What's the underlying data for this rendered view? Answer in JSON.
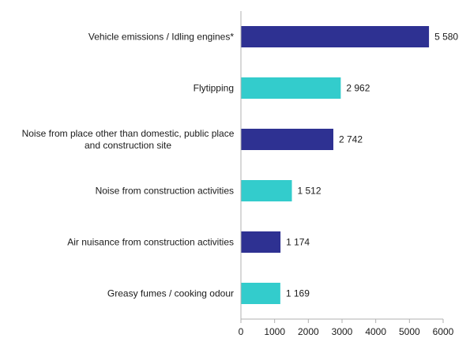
{
  "chart_data": {
    "type": "bar",
    "orientation": "horizontal",
    "categories": [
      [
        "Vehicle emissions / Idling engines*"
      ],
      [
        "Flytipping"
      ],
      [
        "Noise from place other than domestic, public place",
        "and construction site"
      ],
      [
        "Noise from construction activities"
      ],
      [
        "Air nuisance from construction activities"
      ],
      [
        "Greasy fumes / cooking odour"
      ]
    ],
    "values": [
      5580,
      2962,
      2742,
      1512,
      1174,
      1169
    ],
    "value_labels": [
      "5 580",
      "2 962",
      "2 742",
      "1 512",
      "1 174",
      "1 169"
    ],
    "bar_colors": [
      "#2e3192",
      "#33cccc",
      "#2e3192",
      "#33cccc",
      "#2e3192",
      "#33cccc"
    ],
    "xlim": [
      0,
      6000
    ],
    "xticks": [
      0,
      1000,
      2000,
      3000,
      4000,
      5000,
      6000
    ],
    "grid": false,
    "legend": "none"
  }
}
